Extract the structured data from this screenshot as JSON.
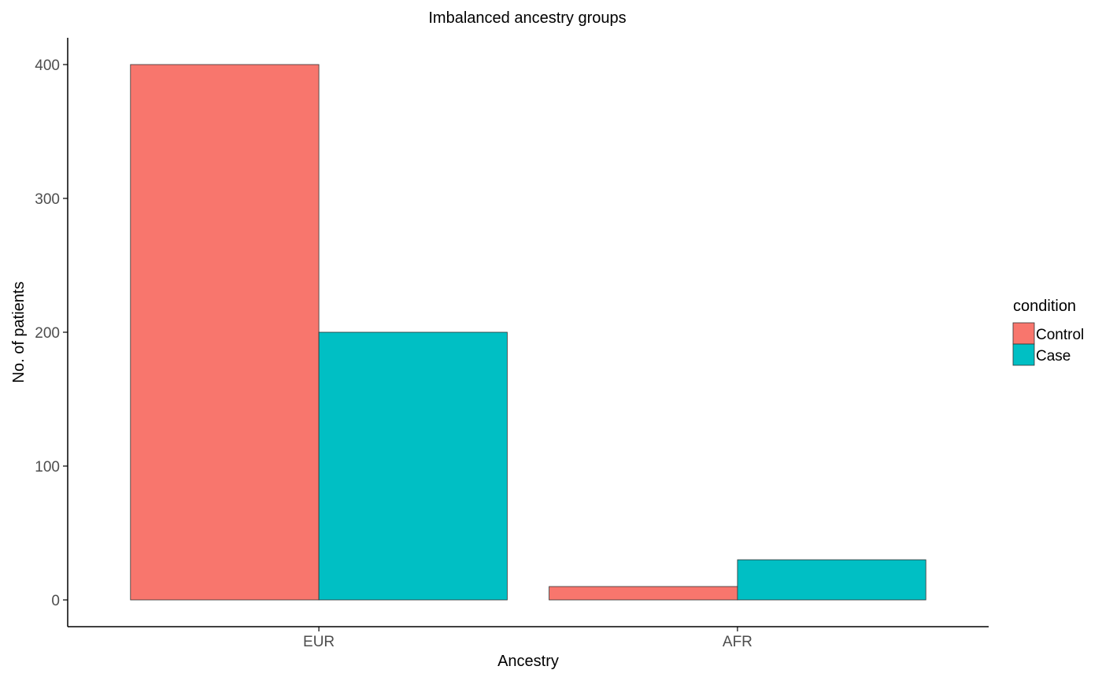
{
  "chart_data": {
    "type": "bar",
    "title": "Imbalanced ancestry groups",
    "xlabel": "Ancestry",
    "ylabel": "No. of patients",
    "categories": [
      "EUR",
      "AFR"
    ],
    "series": [
      {
        "name": "Control",
        "values": [
          400,
          10
        ],
        "color": "#F8766D"
      },
      {
        "name": "Case",
        "values": [
          200,
          30
        ],
        "color": "#00BFC4"
      }
    ],
    "ylim": [
      -20,
      420
    ],
    "yticks": [
      0,
      100,
      200,
      300,
      400
    ],
    "ytick_labels": [
      "0",
      "100",
      "200",
      "300",
      "400"
    ],
    "grid": false,
    "bar_outline_color": "#333333",
    "legend": {
      "title": "condition",
      "placement": "right"
    }
  }
}
